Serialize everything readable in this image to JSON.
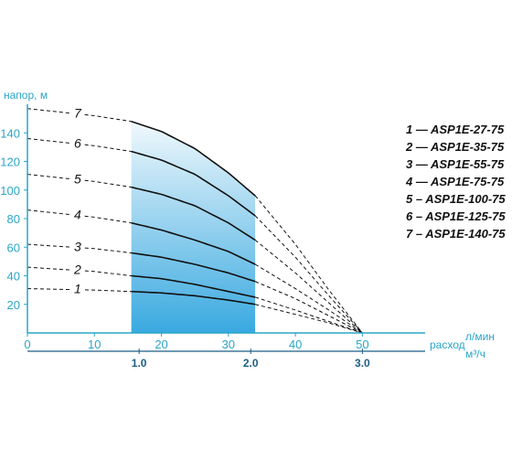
{
  "chart_data": {
    "type": "line",
    "ylabel": "напор, м",
    "xlabel_top": "л/мин",
    "xlabel_bottom": "м³/ч",
    "xlabel_prefix": "расход",
    "x_ticks": [
      0,
      10,
      20,
      30,
      40,
      50
    ],
    "x2_ticks": [
      {
        "label": "1.0",
        "value": 16.67
      },
      {
        "label": "2.0",
        "value": 33.33
      },
      {
        "label": "3.0",
        "value": 50
      }
    ],
    "y_ticks": [
      20,
      40,
      60,
      80,
      100,
      120,
      140
    ],
    "xlim": [
      0,
      58
    ],
    "ylim": [
      0,
      160
    ],
    "working_range": [
      15.5,
      34
    ],
    "curves": [
      {
        "label": "1",
        "series": "1 — ASP1E-27-75",
        "x": [
          0,
          10,
          15.5,
          20,
          25,
          30,
          34,
          40,
          45,
          50
        ],
        "y": [
          31,
          30,
          29,
          28,
          26,
          23,
          20,
          13,
          7,
          0
        ]
      },
      {
        "label": "2",
        "series": "2 — ASP1E-35-75",
        "x": [
          0,
          10,
          15.5,
          20,
          25,
          30,
          34,
          40,
          45,
          50
        ],
        "y": [
          46,
          43,
          40,
          38,
          34,
          29,
          25,
          16,
          8,
          0
        ]
      },
      {
        "label": "3",
        "series": "3 — ASP1E-55-75",
        "x": [
          0,
          10,
          15.5,
          20,
          25,
          30,
          34,
          40,
          45,
          50
        ],
        "y": [
          62,
          59,
          56,
          53,
          48,
          42,
          36,
          24,
          12,
          0
        ]
      },
      {
        "label": "4",
        "series": "4 — ASP1E-75-75",
        "x": [
          0,
          10,
          15.5,
          20,
          25,
          30,
          34,
          40,
          45,
          50
        ],
        "y": [
          86,
          81,
          77,
          72,
          65,
          57,
          48,
          31,
          16,
          0
        ]
      },
      {
        "label": "5",
        "series": "5 – ASP1E-100-75",
        "x": [
          0,
          10,
          15.5,
          20,
          25,
          30,
          34,
          40,
          45,
          50
        ],
        "y": [
          111,
          106,
          102,
          97,
          89,
          77,
          65,
          42,
          21,
          0
        ]
      },
      {
        "label": "6",
        "series": "6 – ASP1E-125-75",
        "x": [
          0,
          10,
          15.5,
          20,
          25,
          30,
          34,
          40,
          45,
          50
        ],
        "y": [
          136,
          131,
          127,
          121,
          111,
          96,
          82,
          53,
          26,
          0
        ]
      },
      {
        "label": "7",
        "series": "7 – ASP1E-140-75",
        "x": [
          0,
          10,
          15.5,
          20,
          25,
          30,
          34,
          40,
          45,
          50
        ],
        "y": [
          157,
          152,
          148,
          141,
          129,
          112,
          96,
          62,
          30,
          0
        ]
      }
    ],
    "legend_position": "right",
    "grid": false,
    "colors": {
      "axis": "#2aa6c8",
      "tick_text": "#2aa6c8",
      "x2_text": "#1b5e86",
      "fill_top": "#ffffff",
      "fill_bottom": "#39a9e0",
      "curve": "#111111"
    }
  }
}
